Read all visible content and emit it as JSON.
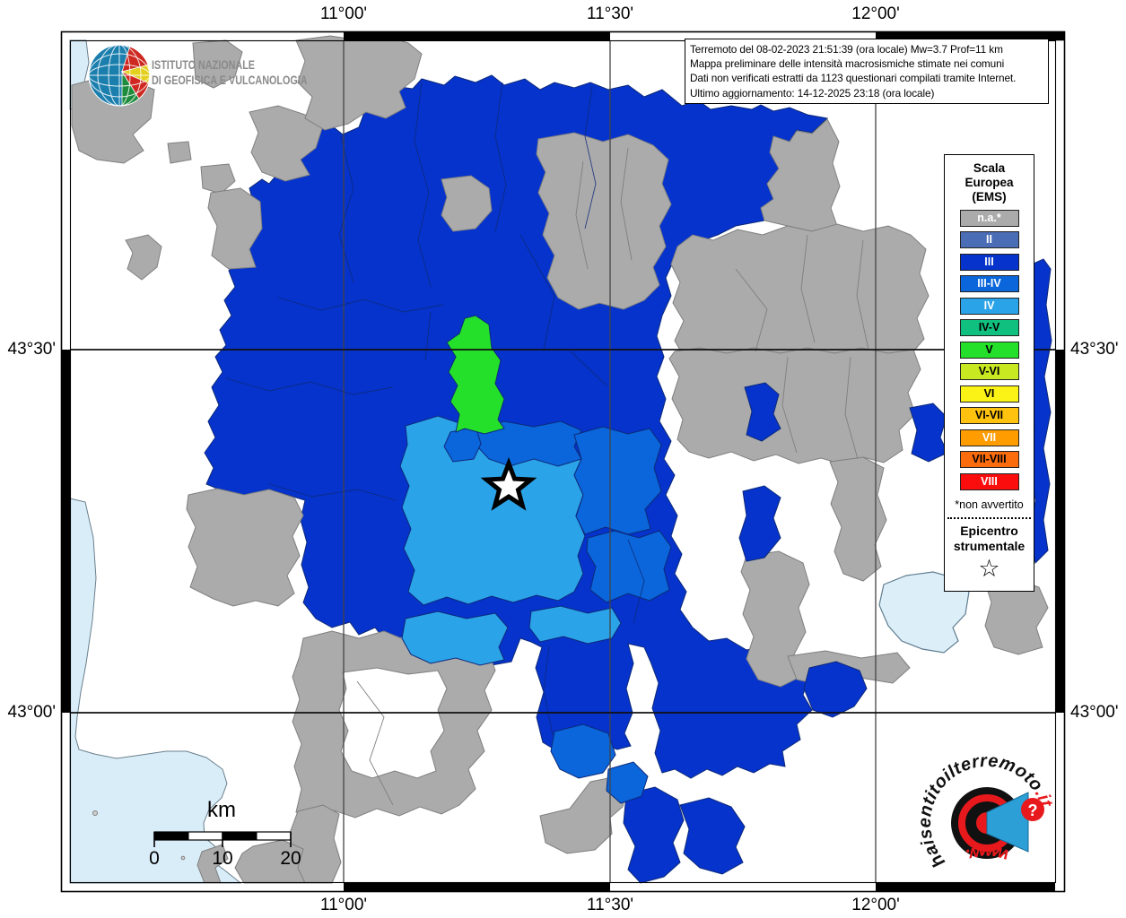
{
  "frame": {
    "top_labels": [
      "11°00'",
      "11°30'",
      "12°00'"
    ],
    "bottom_labels": [
      "11°00'",
      "11°30'",
      "12°00'"
    ],
    "left_labels": [
      "43°30'",
      "43°00'"
    ],
    "right_labels": [
      "43°30'",
      "43°00'"
    ]
  },
  "info_box": {
    "lines": [
      "Terremoto del 08-02-2023 21:51:39 (ora locale) Mw=3.7 Prof=11 km",
      "Mappa preliminare delle intensità macrosismiche stimate nei comuni",
      "Dati non verificati estratti da 1123 questionari compilati tramite Internet.",
      "Ultimo aggiornamento: 14-12-2025 23:18 (ora locale)"
    ]
  },
  "ingv": {
    "line1": "ISTITUTO NAZIONALE",
    "line2": "DI GEOFISICA E VULCANOLOGIA"
  },
  "legend": {
    "title_lines": [
      "Scala",
      "Europea",
      "(EMS)"
    ],
    "items": [
      {
        "label": "n.a.*",
        "color": "#ABABAB",
        "text": "#FFFFFF"
      },
      {
        "label": "II",
        "color": "#4A6DB5",
        "text": "#FFFFFF"
      },
      {
        "label": "III",
        "color": "#0533CB",
        "text": "#FFFFFF"
      },
      {
        "label": "III-IV",
        "color": "#0A66DA",
        "text": "#FFFFFF"
      },
      {
        "label": "IV",
        "color": "#2BA3E8",
        "text": "#FFFFFF"
      },
      {
        "label": "IV-V",
        "color": "#10C07E",
        "text": "#000000"
      },
      {
        "label": "V",
        "color": "#24E02A",
        "text": "#000000"
      },
      {
        "label": "V-VI",
        "color": "#C8E822",
        "text": "#000000"
      },
      {
        "label": "VI",
        "color": "#FCF316",
        "text": "#000000"
      },
      {
        "label": "VI-VII",
        "color": "#FFC20E",
        "text": "#000000"
      },
      {
        "label": "VII",
        "color": "#FF9C00",
        "text": "#FFFFFF"
      },
      {
        "label": "VII-VIII",
        "color": "#FB6C0D",
        "text": "#000000"
      },
      {
        "label": "VIII",
        "color": "#FB0D0D",
        "text": "#FFFFFF"
      }
    ],
    "footnote": "*non avvertito",
    "epicenter_lines": [
      "Epicentro",
      "strumentale"
    ],
    "epicenter_symbol": "☆"
  },
  "scale_bar": {
    "unit": "km",
    "ticks": [
      "0",
      "10",
      "20"
    ]
  },
  "watermark": {
    "url_black": "haisentitoilterremoto",
    "url_red": ".it",
    "www": "www.",
    "question_mark": "?"
  },
  "map": {
    "colors": {
      "na": "#ABABAB",
      "ii": "#4A6DB5",
      "iii": "#0533CB",
      "iii_iv": "#0A66DA",
      "iv": "#2BA3E8",
      "iv_v": "#10C07E",
      "v": "#24E02A",
      "v_vi": "#C8E822",
      "vi": "#FCF316",
      "vi_vii": "#FFC20E",
      "vii": "#FF9C00",
      "vii_viii": "#FB6C0D",
      "viii": "#FB0D0D",
      "sea": "#D9EDF8",
      "lake": "#DCEFF9",
      "border_blue": "#0E2A7A",
      "border_gray": "#7F7F7F"
    }
  }
}
